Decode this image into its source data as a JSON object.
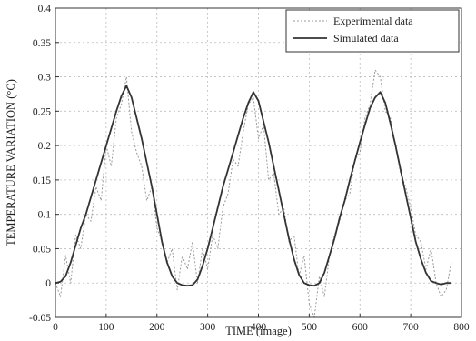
{
  "chart_data": {
    "type": "line",
    "title": "",
    "xlabel": "TIME (image)",
    "ylabel": "TEMPERATURE VARIATION (°C)",
    "xlim": [
      0,
      800
    ],
    "ylim": [
      -0.05,
      0.4
    ],
    "x_ticks": [
      "0",
      "100",
      "200",
      "300",
      "400",
      "500",
      "600",
      "700",
      "800"
    ],
    "y_ticks": [
      "-0.05",
      "0",
      "0.05",
      "0.1",
      "0.15",
      "0.2",
      "0.25",
      "0.3",
      "0.35",
      "0.4"
    ],
    "grid": true,
    "legend_position": "top-right",
    "colors": {
      "experimental": "#9a9a9a",
      "simulated": "#333333",
      "grid": "#bdbdbd",
      "frame": "#333333"
    },
    "series": [
      {
        "name": "Experimental data",
        "style": "dotted",
        "x": [
          0,
          10,
          20,
          30,
          40,
          50,
          60,
          70,
          80,
          90,
          100,
          110,
          120,
          130,
          140,
          150,
          160,
          170,
          180,
          190,
          200,
          210,
          220,
          230,
          240,
          250,
          260,
          270,
          280,
          290,
          300,
          310,
          320,
          330,
          340,
          350,
          360,
          370,
          380,
          390,
          400,
          410,
          420,
          430,
          440,
          450,
          460,
          470,
          480,
          490,
          500,
          510,
          520,
          530,
          540,
          550,
          560,
          570,
          580,
          590,
          600,
          610,
          620,
          630,
          640,
          650,
          660,
          670,
          680,
          690,
          700,
          710,
          720,
          730,
          740,
          750,
          760,
          770,
          780
        ],
        "y": [
          0.0,
          -0.02,
          0.04,
          0.0,
          0.07,
          0.05,
          0.1,
          0.09,
          0.14,
          0.12,
          0.2,
          0.17,
          0.24,
          0.26,
          0.3,
          0.22,
          0.19,
          0.17,
          0.12,
          0.14,
          0.08,
          0.06,
          0.03,
          0.05,
          -0.01,
          0.04,
          0.02,
          0.06,
          0.0,
          0.05,
          0.02,
          0.07,
          0.05,
          0.11,
          0.13,
          0.18,
          0.17,
          0.22,
          0.26,
          0.27,
          0.21,
          0.23,
          0.15,
          0.16,
          0.1,
          0.11,
          0.06,
          0.07,
          0.01,
          0.04,
          -0.03,
          -0.05,
          0.01,
          -0.02,
          0.04,
          0.07,
          0.09,
          0.12,
          0.13,
          0.18,
          0.19,
          0.24,
          0.26,
          0.31,
          0.3,
          0.25,
          0.24,
          0.2,
          0.16,
          0.14,
          0.11,
          0.07,
          0.06,
          0.02,
          0.05,
          0.0,
          -0.02,
          -0.01,
          0.03
        ]
      },
      {
        "name": "Simulated data",
        "style": "solid",
        "x": [
          0,
          10,
          20,
          30,
          40,
          50,
          60,
          70,
          80,
          90,
          100,
          110,
          120,
          130,
          140,
          150,
          160,
          170,
          180,
          190,
          200,
          210,
          220,
          230,
          240,
          250,
          260,
          270,
          280,
          290,
          300,
          310,
          320,
          330,
          340,
          350,
          360,
          370,
          380,
          390,
          400,
          410,
          420,
          430,
          440,
          450,
          460,
          470,
          480,
          490,
          500,
          510,
          520,
          530,
          540,
          550,
          560,
          570,
          580,
          590,
          600,
          610,
          620,
          630,
          640,
          650,
          660,
          670,
          680,
          690,
          700,
          710,
          720,
          730,
          740,
          750,
          760,
          770,
          780
        ],
        "y": [
          0.0,
          0.002,
          0.01,
          0.03,
          0.055,
          0.08,
          0.1,
          0.125,
          0.15,
          0.175,
          0.2,
          0.225,
          0.25,
          0.272,
          0.287,
          0.27,
          0.24,
          0.21,
          0.175,
          0.14,
          0.1,
          0.06,
          0.03,
          0.01,
          0.0,
          -0.003,
          -0.004,
          -0.003,
          0.005,
          0.025,
          0.05,
          0.08,
          0.11,
          0.14,
          0.165,
          0.19,
          0.215,
          0.24,
          0.262,
          0.278,
          0.265,
          0.235,
          0.205,
          0.17,
          0.135,
          0.1,
          0.065,
          0.035,
          0.012,
          0.0,
          -0.003,
          -0.004,
          0.0,
          0.015,
          0.04,
          0.065,
          0.095,
          0.12,
          0.15,
          0.178,
          0.205,
          0.23,
          0.255,
          0.27,
          0.278,
          0.262,
          0.232,
          0.2,
          0.165,
          0.13,
          0.095,
          0.06,
          0.035,
          0.015,
          0.003,
          0.0,
          -0.002,
          0.0,
          0.0
        ]
      }
    ]
  }
}
